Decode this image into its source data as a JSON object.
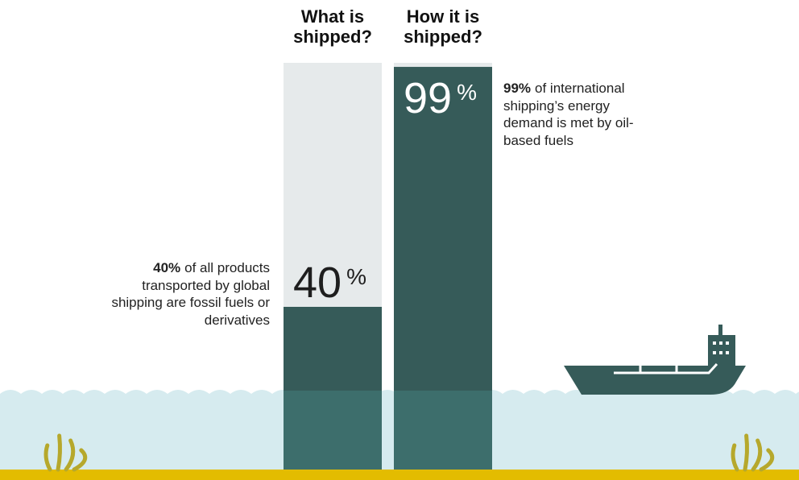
{
  "chart_data": {
    "type": "bar",
    "categories": [
      "What is shipped?",
      "How it is shipped?"
    ],
    "values": [
      40,
      99
    ],
    "unit": "%",
    "ylim": [
      0,
      100
    ],
    "color": "#365b59",
    "track_color": "#e6eaeb",
    "annotations": [
      {
        "bold": "40%",
        "text": "of all products transported by global shipping are fossil fuels or derivatives"
      },
      {
        "bold": "99%",
        "text": "of international shipping’s energy demand is met by oil-based fuels"
      }
    ]
  }
}
